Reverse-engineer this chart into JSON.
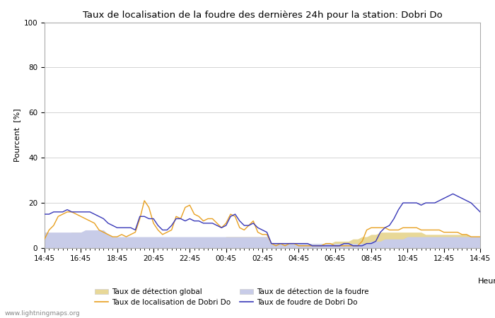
{
  "title": "Taux de localisation de la foudre des dernières 24h pour la station: Dobri Do",
  "xlabel": "Heure",
  "ylabel": "Pourcent  [%]",
  "ylim": [
    0,
    100
  ],
  "yticks": [
    0,
    20,
    40,
    60,
    80,
    100
  ],
  "x_labels": [
    "14:45",
    "16:45",
    "18:45",
    "20:45",
    "22:45",
    "00:45",
    "02:45",
    "04:45",
    "06:45",
    "08:45",
    "10:45",
    "12:45",
    "14:45"
  ],
  "watermark": "www.lightningmaps.org",
  "n_points": 97,
  "global_detect": [
    4,
    4,
    5,
    5,
    6,
    6,
    7,
    7,
    7,
    7,
    6,
    6,
    5,
    5,
    4,
    4,
    4,
    4,
    4,
    4,
    4,
    4,
    4,
    4,
    3,
    3,
    3,
    3,
    3,
    3,
    4,
    4,
    4,
    4,
    4,
    4,
    4,
    4,
    4,
    4,
    5,
    5,
    5,
    5,
    5,
    5,
    5,
    5,
    5,
    5,
    2,
    2,
    2,
    2,
    2,
    2,
    2,
    2,
    2,
    2,
    2,
    2,
    2,
    2,
    3,
    3,
    3,
    3,
    4,
    4,
    5,
    5,
    6,
    6,
    7,
    7,
    7,
    7,
    7,
    7,
    7,
    7,
    7,
    7,
    6,
    6,
    6,
    6,
    6,
    6,
    6,
    6,
    6,
    6,
    5,
    5,
    5
  ],
  "local_detect": [
    4,
    8,
    10,
    14,
    15,
    16,
    16,
    15,
    14,
    13,
    12,
    11,
    8,
    7,
    6,
    5,
    5,
    6,
    5,
    6,
    7,
    13,
    21,
    18,
    11,
    8,
    6,
    7,
    8,
    14,
    13,
    18,
    19,
    15,
    14,
    12,
    13,
    13,
    11,
    9,
    11,
    15,
    14,
    9,
    8,
    10,
    12,
    7,
    6,
    6,
    2,
    1,
    2,
    1,
    2,
    2,
    1,
    1,
    1,
    1,
    1,
    1,
    2,
    2,
    1,
    1,
    1,
    1,
    1,
    1,
    3,
    8,
    9,
    9,
    9,
    9,
    8,
    8,
    8,
    9,
    9,
    9,
    9,
    8,
    8,
    8,
    8,
    8,
    7,
    7,
    7,
    7,
    6,
    6,
    5,
    5,
    5
  ],
  "foudre_detect": [
    7,
    7,
    7,
    7,
    7,
    7,
    7,
    7,
    7,
    8,
    8,
    8,
    8,
    8,
    6,
    5,
    5,
    5,
    5,
    5,
    5,
    5,
    5,
    5,
    5,
    5,
    5,
    5,
    5,
    5,
    5,
    5,
    5,
    5,
    5,
    5,
    5,
    5,
    5,
    5,
    5,
    5,
    5,
    5,
    5,
    5,
    5,
    5,
    5,
    5,
    2,
    2,
    2,
    2,
    2,
    2,
    2,
    2,
    2,
    2,
    2,
    2,
    2,
    2,
    2,
    2,
    2,
    2,
    2,
    2,
    2,
    2,
    3,
    3,
    3,
    4,
    4,
    4,
    4,
    4,
    5,
    5,
    5,
    5,
    5,
    5,
    5,
    5,
    5,
    5,
    5,
    5,
    5,
    5,
    5,
    5,
    5
  ],
  "foudre_local": [
    15,
    15,
    16,
    16,
    16,
    17,
    16,
    16,
    16,
    16,
    16,
    15,
    14,
    13,
    11,
    10,
    9,
    9,
    9,
    9,
    8,
    14,
    14,
    13,
    13,
    10,
    8,
    8,
    10,
    13,
    13,
    12,
    13,
    12,
    12,
    11,
    11,
    11,
    10,
    9,
    10,
    14,
    15,
    12,
    10,
    10,
    11,
    9,
    8,
    7,
    2,
    2,
    2,
    2,
    2,
    2,
    2,
    2,
    2,
    1,
    1,
    1,
    1,
    1,
    1,
    1,
    2,
    2,
    1,
    1,
    1,
    2,
    2,
    3,
    7,
    9,
    10,
    13,
    17,
    20,
    20,
    20,
    20,
    19,
    20,
    20,
    20,
    21,
    22,
    23,
    24,
    23,
    22,
    21,
    20,
    18,
    16
  ],
  "fill_global_color": "#e8d898",
  "fill_foudre_color": "#c8cce8",
  "line_local_color": "#e8a020",
  "line_foudre_color": "#3838b8",
  "bg_color": "#ffffff",
  "grid_color": "#cccccc",
  "title_fontsize": 9.5,
  "tick_fontsize": 7.5,
  "label_fontsize": 8.0
}
